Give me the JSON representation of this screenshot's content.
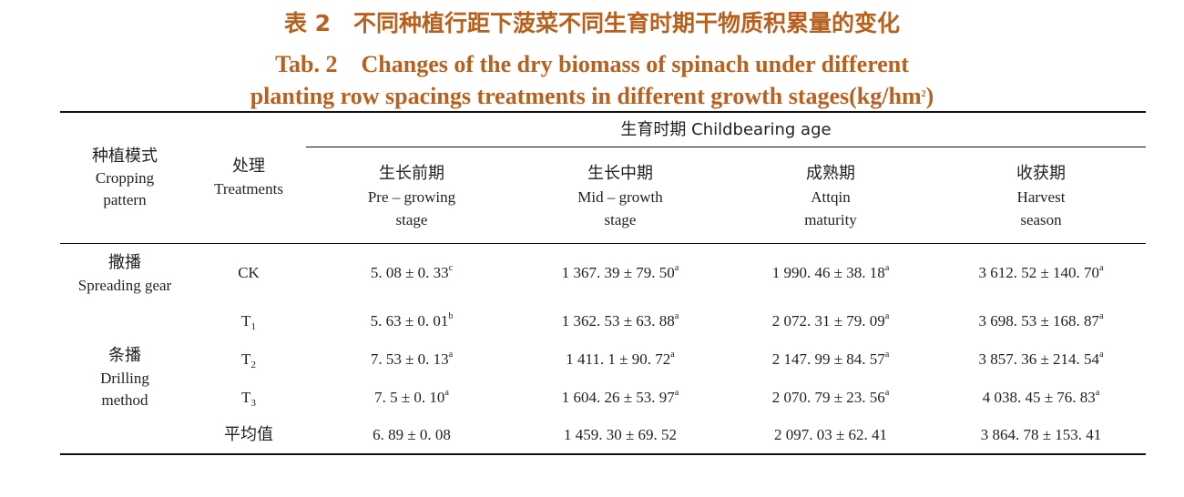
{
  "caption": {
    "zh": "表 2　不同种植行距下菠菜不同生育时期干物质积累量的变化",
    "en_line1": "Tab. 2　Changes of the dry biomass of spinach under different",
    "en_line2": "planting row spacings treatments in different growth stages(kg/hm",
    "en_sup": "2",
    "en_end": ")"
  },
  "header": {
    "group": "生育时期 Childbearing age",
    "col_mode": {
      "zh": "种植模式",
      "en1": "Cropping",
      "en2": "pattern"
    },
    "col_treat": {
      "zh": "处理",
      "en1": "Treatments"
    },
    "stages": [
      {
        "zh": "生长前期",
        "en1": "Pre – growing",
        "en2": "stage"
      },
      {
        "zh": "生长中期",
        "en1": "Mid – growth",
        "en2": "stage"
      },
      {
        "zh": "成熟期",
        "en1": "Attqin",
        "en2": "maturity"
      },
      {
        "zh": "收获期",
        "en1": "Harvest",
        "en2": "season"
      }
    ]
  },
  "groups": {
    "spreading": {
      "zh": "撒播",
      "en": "Spreading gear"
    },
    "drilling": {
      "zh": "条播",
      "en1": "Drilling",
      "en2": "method"
    }
  },
  "rows": [
    {
      "treat": "CK",
      "treat_sub": "",
      "cells": [
        {
          "v": "5. 08 ± 0. 33",
          "s": "c"
        },
        {
          "v": "1 367. 39 ± 79. 50",
          "s": "a"
        },
        {
          "v": "1 990. 46 ± 38. 18",
          "s": "a"
        },
        {
          "v": "3 612. 52 ± 140. 70",
          "s": "a"
        }
      ]
    },
    {
      "treat": "T",
      "treat_sub": "1",
      "cells": [
        {
          "v": "5. 63 ± 0. 01",
          "s": "b"
        },
        {
          "v": "1 362. 53 ± 63. 88",
          "s": "a"
        },
        {
          "v": "2 072. 31 ± 79. 09",
          "s": "a"
        },
        {
          "v": "3 698. 53 ± 168. 87",
          "s": "a"
        }
      ]
    },
    {
      "treat": "T",
      "treat_sub": "2",
      "cells": [
        {
          "v": "7. 53 ± 0. 13",
          "s": "a"
        },
        {
          "v": "1 411. 1 ± 90. 72",
          "s": "a"
        },
        {
          "v": "2 147. 99 ± 84. 57",
          "s": "a"
        },
        {
          "v": "3 857. 36 ± 214. 54",
          "s": "a"
        }
      ]
    },
    {
      "treat": "T",
      "treat_sub": "3",
      "cells": [
        {
          "v": "7. 5 ± 0. 10",
          "s": "a"
        },
        {
          "v": "1 604. 26 ± 53. 97",
          "s": "a"
        },
        {
          "v": "2 070. 79 ± 23. 56",
          "s": "a"
        },
        {
          "v": "4 038. 45 ± 76. 83",
          "s": "a"
        }
      ]
    },
    {
      "treat": "平均值",
      "treat_sub": "",
      "cells": [
        {
          "v": "6. 89 ± 0. 08",
          "s": ""
        },
        {
          "v": "1 459. 30 ± 69. 52",
          "s": ""
        },
        {
          "v": "2 097. 03 ± 62. 41",
          "s": ""
        },
        {
          "v": "3 864. 78 ± 153. 41",
          "s": ""
        }
      ]
    }
  ]
}
